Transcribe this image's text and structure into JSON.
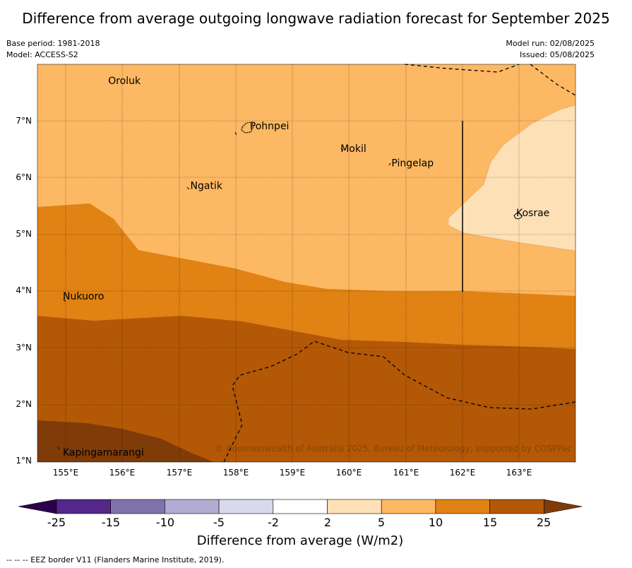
{
  "title": "Difference from average outgoing longwave radiation forecast for September 2025",
  "meta": {
    "base_period": "Base period: 1981-2018",
    "model": "Model: ACCESS-S2",
    "model_run": "Model run: 02/08/2025",
    "issued": "Issued: 05/08/2025"
  },
  "axes": {
    "lat_labels": [
      "7°N",
      "6°N",
      "5°N",
      "4°N",
      "3°N",
      "2°N",
      "1°N"
    ],
    "lon_labels": [
      "155°E",
      "156°E",
      "157°E",
      "158°E",
      "159°E",
      "160°E",
      "161°E",
      "162°E",
      "163°E"
    ]
  },
  "places": [
    {
      "name": "Oroluk",
      "lat": 7.65,
      "lon": 155.75
    },
    {
      "name": "Pohnpei",
      "lat": 6.85,
      "lon": 158.25
    },
    {
      "name": "Mokil",
      "lat": 6.45,
      "lon": 159.85
    },
    {
      "name": "Pingelap",
      "lat": 6.2,
      "lon": 160.75
    },
    {
      "name": "Ngatik",
      "lat": 5.8,
      "lon": 157.2
    },
    {
      "name": "Kosrae",
      "lat": 5.32,
      "lon": 162.95
    },
    {
      "name": "Nukuoro",
      "lat": 3.85,
      "lon": 154.95
    },
    {
      "name": "Kapingamarangi",
      "lat": 1.1,
      "lon": 154.95
    }
  ],
  "copyright": "© Commonwealth of Australia 2025, Bureau of Meteorology, supported by COSPPac",
  "colorbar": {
    "ticks": [
      "-25",
      "-15",
      "-10",
      "-5",
      "-2",
      "2",
      "5",
      "10",
      "15",
      "25"
    ],
    "colors": [
      "#542788",
      "#8073ac",
      "#b2abd2",
      "#d8daeb",
      "#ffffff",
      "#fee0b6",
      "#fdb863",
      "#e08214",
      "#b35806"
    ],
    "under_color": "#2d004b",
    "over_color": "#7f3b08",
    "label": "Difference from average (W/m2)"
  },
  "footnote": "--  --  -- EEZ border V11 (Flanders Marine Institute, 2019)."
}
